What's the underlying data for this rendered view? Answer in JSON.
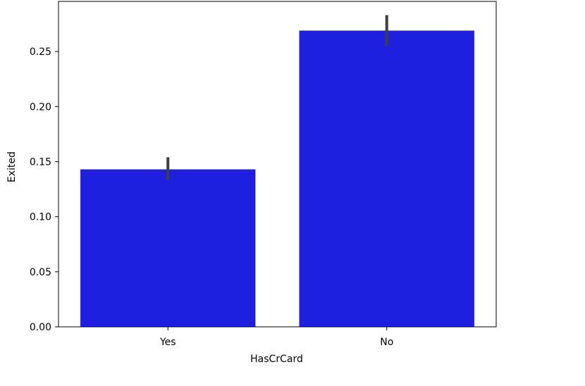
{
  "chart_data": {
    "type": "bar",
    "categories": [
      "Yes",
      "No"
    ],
    "values": [
      0.143,
      0.269
    ],
    "error_bars": [
      {
        "low": 0.133,
        "high": 0.154
      },
      {
        "low": 0.255,
        "high": 0.283
      }
    ],
    "title": "",
    "xlabel": "HasCrCard",
    "ylabel": "Exited",
    "ylim": [
      0,
      0.2955
    ],
    "yticks": [
      0.0,
      0.05,
      0.1,
      0.15,
      0.2,
      0.25
    ],
    "ytick_labels": [
      "0.00",
      "0.05",
      "0.10",
      "0.15",
      "0.20",
      "0.25"
    ],
    "grid": false,
    "bar_color": "#1f1fe0",
    "error_bar_color": "#3f3f3f"
  }
}
